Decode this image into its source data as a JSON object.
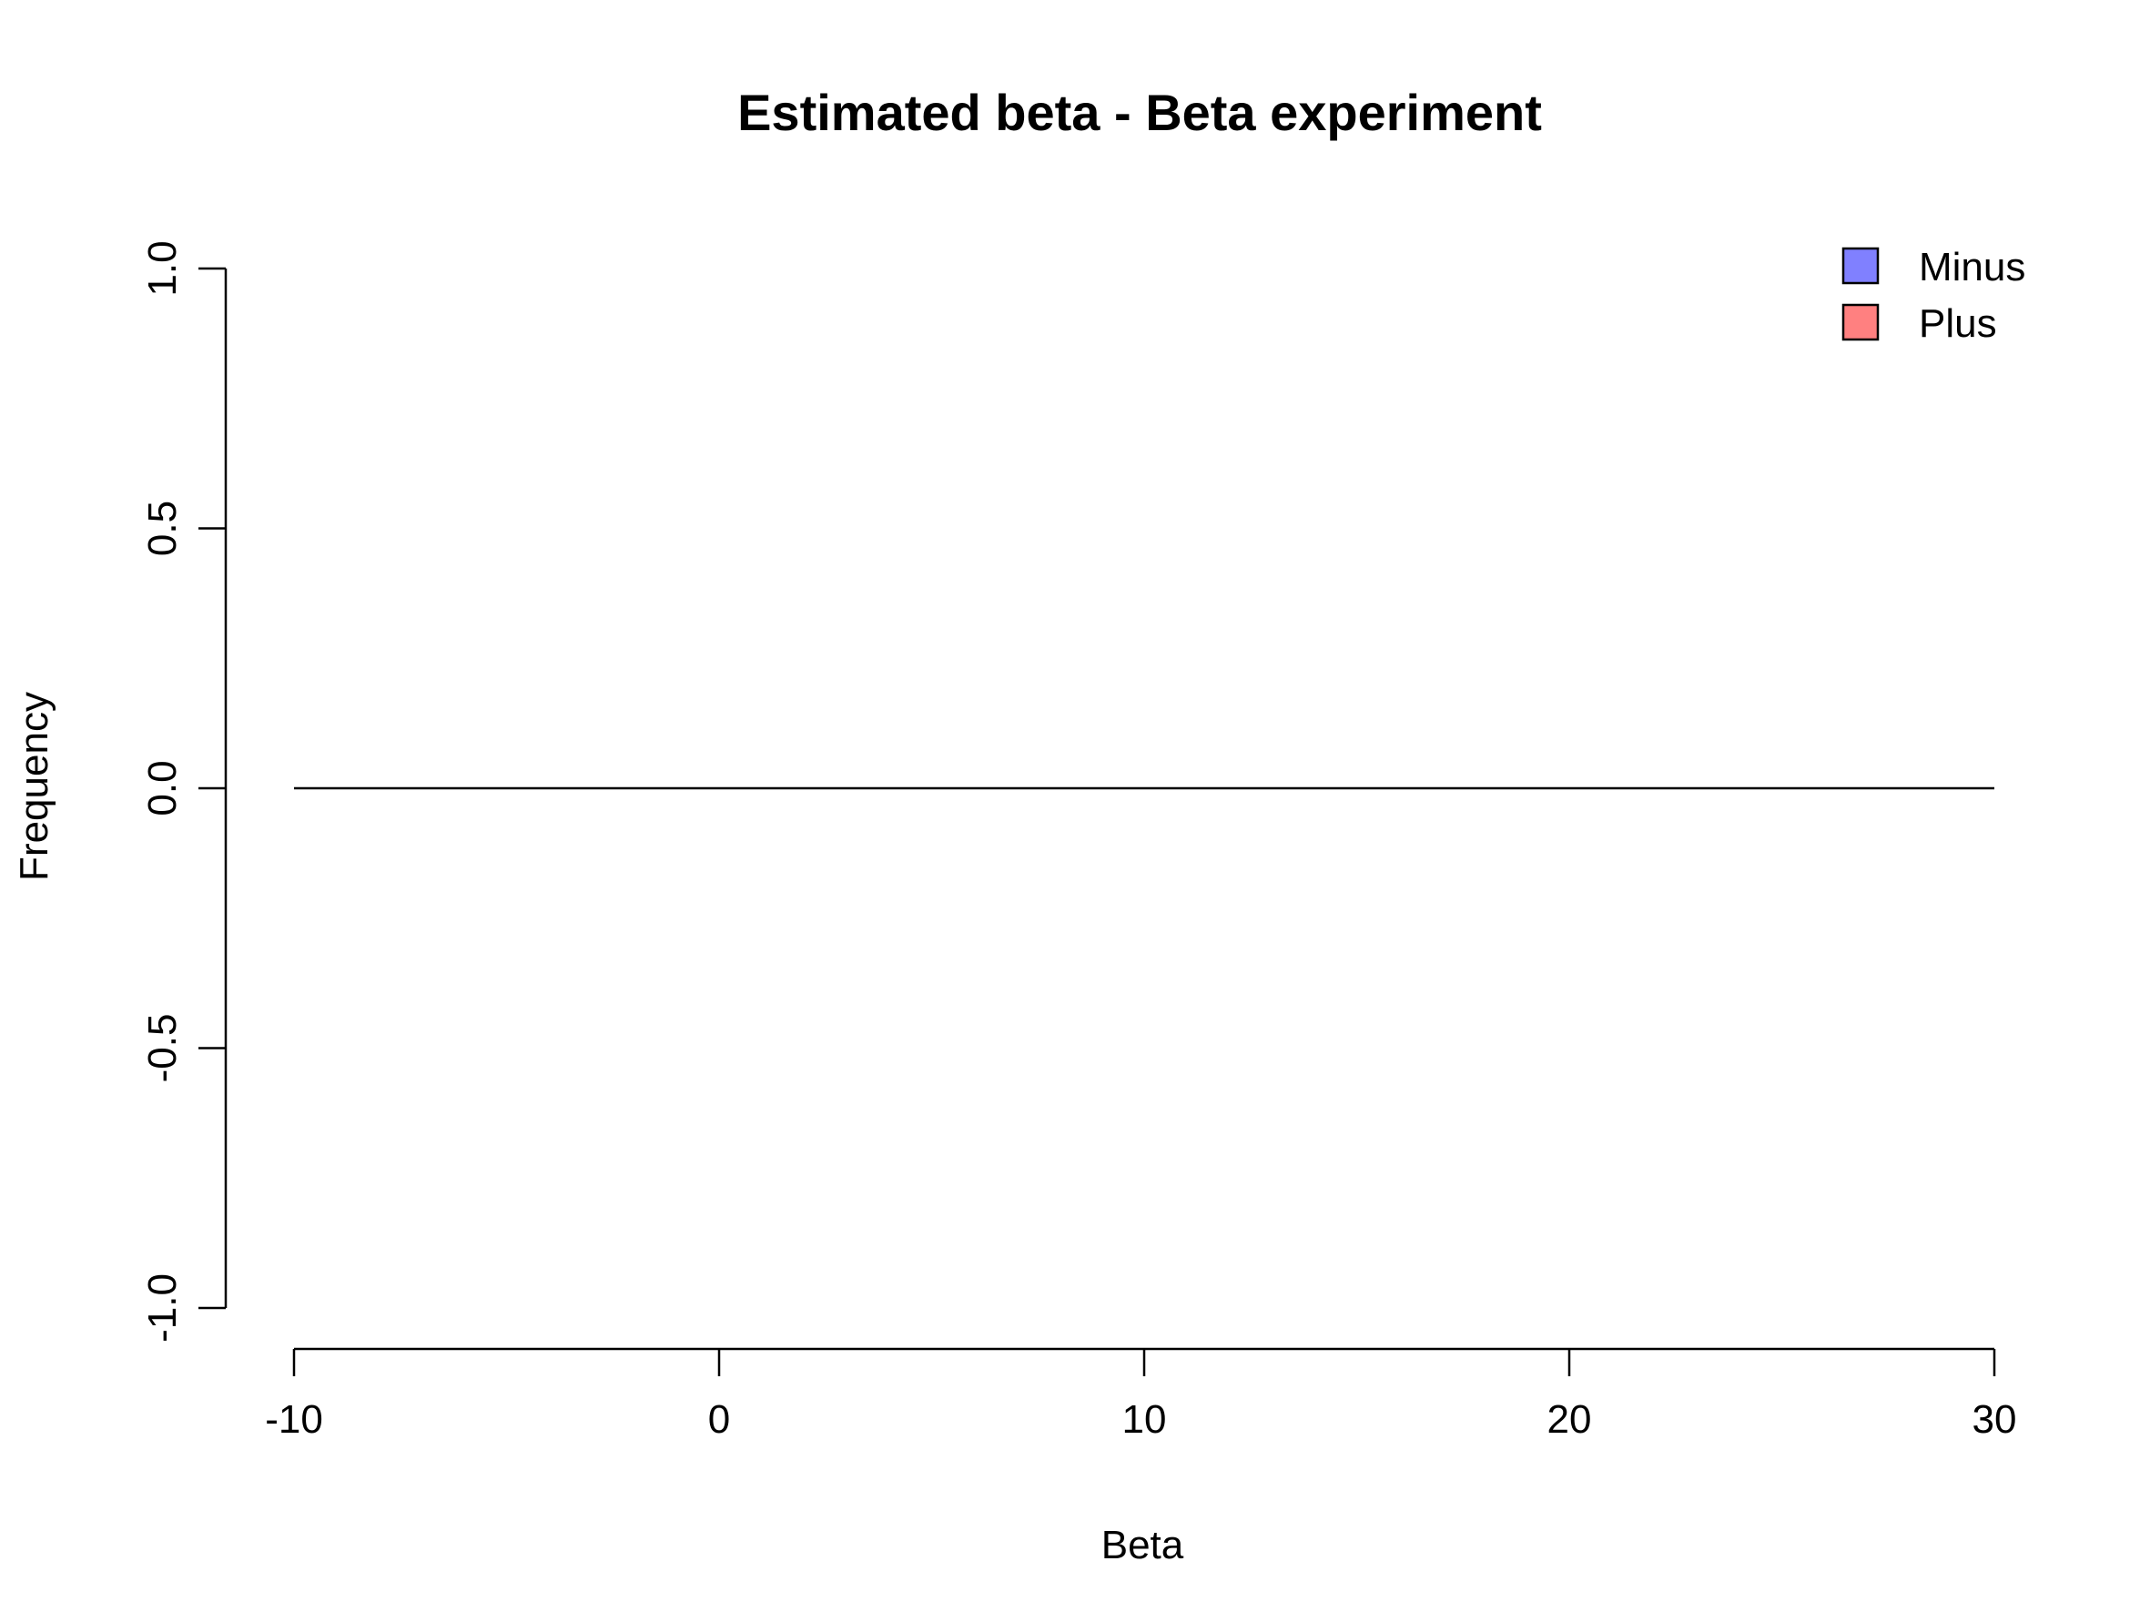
{
  "chart_data": {
    "type": "bar",
    "title": "Estimated beta - Beta experiment",
    "xlabel": "Beta",
    "ylabel": "Frequency",
    "xlim": [
      -10,
      30
    ],
    "ylim": [
      -1,
      1
    ],
    "x_ticks": [
      -10,
      0,
      10,
      20,
      30
    ],
    "x_tick_labels": [
      "-10",
      "0",
      "10",
      "20",
      "30"
    ],
    "y_ticks": [
      -1,
      -0.5,
      0,
      0.5,
      1
    ],
    "y_tick_labels": [
      "-1.0",
      "-0.5",
      "0.0",
      "0.5",
      "1.0"
    ],
    "grid": false,
    "legend_position": "top-right",
    "series": [
      {
        "name": "Minus",
        "color": "#8080ff",
        "values": []
      },
      {
        "name": "Plus",
        "color": "#ff8080",
        "values": []
      }
    ],
    "reference_line": {
      "y": 0,
      "from_x": -10,
      "to_x": 30
    }
  }
}
